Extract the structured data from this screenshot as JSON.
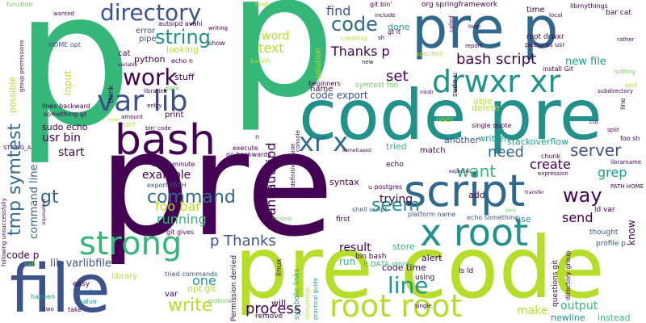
{
  "palette": {
    "dark_purple": "#440154",
    "indigo": "#3b528b",
    "blue": "#31688e",
    "teal": "#21918c",
    "green_teal": "#1f9e89",
    "green": "#35b779",
    "light_green": "#6ece58",
    "lime": "#b5de2b",
    "yellow": "#fde725"
  },
  "words": {
    "p_big": "p",
    "p_top": "p",
    "pre_center": "pre",
    "code_pre": "code pre",
    "pre_code": "pre code",
    "pre_p": "pre p",
    "file": "file",
    "bash": "bash",
    "script": "script",
    "x_root": "x root",
    "drwxr_xr": "drwxr xr",
    "root_root": "root root",
    "strong": "strong",
    "var_lib": "var lib",
    "directory": "directory",
    "work": "work",
    "string": "string",
    "code": "code",
    "xr_x": "xr x",
    "line": "line",
    "seem": "seem",
    "command": "command",
    "server": "server",
    "bash_script": "bash script",
    "find": "find",
    "thanks_p": "Thanks p",
    "p_thanks": "p Thanks",
    "text": "text",
    "word": "word",
    "set": "set",
    "need": "need",
    "want": "want",
    "create": "create",
    "way": "way",
    "send": "send",
    "grep": "grep",
    "write": "write",
    "process": "process",
    "running": "running",
    "foo_bar": "foo bar",
    "example": "example",
    "start": "start",
    "one": "one",
    "output": "output",
    "make": "make",
    "tmp_symtest": "tmp symtest",
    "usr_bin": "usr bin",
    "gt": "gt",
    "result": "result",
    "trying": "trying",
    "lib_varlibfile": "lib varlibfile",
    "avahi_autoipd": "avahi autoipd",
    "code_p": "code p",
    "new_file": "new file",
    "code_export": "code export",
    "solution": "solution",
    "sudo_u": "sudo u",
    "symtest_foo": "symtest foo",
    "done": "done",
    "code_time": "code time",
    "line_2": "line",
    "run": "run",
    "store": "store",
    "instead": "instead",
    "newline": "newline",
    "will": "will",
    "lt_data_store": "lt DATA store",
    "bin_bash": "bin bash",
    "command_line": "command line",
    "possible": "possible",
    "input": "input",
    "name": "name",
    "able": "able",
    "delete": "delete",
    "written": "written",
    "tried": "tried",
    "echo": "echo",
    "another": "another",
    "stackoverflow": "stackoverflow",
    "syntax": "syntax",
    "alert": "alert",
    "add": "add",
    "use": "use",
    "shell_script": "shell script",
    "u_postgres": "u postgres",
    "platform_name": "platform name",
    "echo_something": "echo something",
    "ls_ld": "ls ld",
    "match": "match",
    "ld_var": "ld var",
    "know": "know",
    "thought": "thought",
    "profile_p": "profile p",
    "python": "python",
    "cat": "cat",
    "looking": "looking",
    "stuff": "stuff",
    "think": "think",
    "pipe": "pipe",
    "error": "error",
    "autoipd_avahi": "autoipd avahi",
    "home_opt": "HOME opt",
    "function": "function",
    "lines_backward": "lines backward",
    "something_gt": "something gt",
    "sudo_echo": "sudo echo",
    "date": "date",
    "print": "print",
    "opt_git": "opt git",
    "var": "var",
    "tried_commands": "tried commands",
    "library": "library",
    "easy": "easy",
    "p_code": "p code",
    "happen": "happen",
    "value": "value",
    "take": "take",
    "two": "two",
    "call": "call",
    "execute": "execute",
    "every_minute": "every minute",
    "export_path": "export PATH",
    "git_gives": "git gives",
    "go_backwards": "go backwards",
    "permission_denied": "Permission denied",
    "symbolic_links": "symbolic links",
    "remove": "remove",
    "linux": "linux",
    "first": "first",
    "using": "using",
    "single": "single",
    "root_drwxr": "root drwxr",
    "postgres_usr": "postgres usr",
    "install_git": "install Git",
    "local": "local",
    "libmythings": "libmythings",
    "bar_cat": "bar cat",
    "time": "time",
    "org_springframework": "org springframework",
    "href": "href",
    "git_bin": "git bin'",
    "gt_lt": "gt lt",
    "include": "include",
    "wanted": "wanted",
    "show": "show",
    "writing": "writing",
    "nothing": "nothing",
    "end": "end",
    "subdirectory": "subdirectory",
    "single_quote": "single quote",
    "cut": "cut",
    "split": "split",
    "foo_sh": "foo sh",
    "chunk": "chunk",
    "expression": "expression",
    "librarname": "librarname",
    "path_home": "PATH HOME",
    "questions_git": "questions git",
    "directory_group": "directory group",
    "rather": "rather",
    "loop": "loop",
    "report": "report",
    "called": "called",
    "beginners": "beginners",
    "specified": "specified",
    "creating": "creating",
    "user": "user",
    "entry": "entry",
    "bin_code": "bin' code",
    "edit": "EDIT",
    "amount": "amount",
    "even": "even",
    "libraries": "libraries",
    "variable": "variable",
    "bunch": "bunch",
    "echo_n": "echo n",
    "n": "n",
    "console": "console",
    "definitive_guide": "definitive guide",
    "libmythings_2": "libmythings",
    "practical_guide": "practical guide",
    "camelcased": "camelcased",
    "expected": "expected",
    "transfer": "transfer",
    "java": "java",
    "problem": "problem",
    "second": "second",
    "equivalent": "equivalent",
    "following_unsuccessfully": "following unsuccessfully",
    "string_a": "STRING_A",
    "group_permissions": "group permissions",
    "new": "new",
    "sh": "sh",
    "mkdir": "mkdir"
  }
}
